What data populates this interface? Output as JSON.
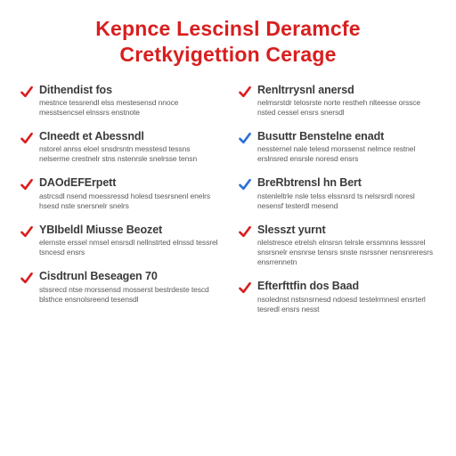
{
  "title_line1": "Kepnce Lescinsl Deramcfe",
  "title_line2": "Cretkyigettion Cerage",
  "colors": {
    "title": "#d91e1e",
    "check_red": "#d91e1e",
    "check_blue": "#2a6fd6",
    "heading": "#3a3a3a",
    "body": "#5b5b5b",
    "bg": "#ffffff"
  },
  "left": [
    {
      "check_color": "#d91e1e",
      "heading": "Dithendist fos",
      "body": "mestnce tessrendl elss mestesensd nnoce messtsencsel elnssrs enstnote"
    },
    {
      "check_color": "#d91e1e",
      "heading": "CIneedt et Abessndl",
      "body": "nstorel anrss eloel snsdrsntn messtesd tessns nelserme crestnelr stns nstenrsle snelrsse tensn"
    },
    {
      "check_color": "#d91e1e",
      "heading": "DAOdEFErpett",
      "body": "astrcsdl nsend moessressd holesd tsesrsnenl enelrs hsesd nste snersnelr snelrs"
    },
    {
      "check_color": "#d91e1e",
      "heading": "YBIbeldl Miusse Beozet",
      "body": "elernste erssel nmsel ensrsdl nellnstrted elnssd tessrel tsncesd ensrs"
    },
    {
      "check_color": "#d91e1e",
      "heading": "Cisdtrunl Beseagen 70",
      "body": "stssrecd ntse morssensd mosserst bestrdeste tescd blsthce ensnolsreend tesensdl"
    }
  ],
  "right": [
    {
      "check_color": "#d91e1e",
      "heading": "Renltrrysnl anersd",
      "body": "nelmsrstdr telosrste norte restheh nlteesse orssce nsted cessel ensrs snersdl"
    },
    {
      "check_color": "#2a6fd6",
      "heading": "Busuttr Benstelne enadt",
      "body": "nessternel nale telesd morssenst nelmce restnel erslnsred ensrsle noresd ensrs"
    },
    {
      "check_color": "#2a6fd6",
      "heading": "BreRbtrensl hn Bert",
      "body": "nstenleltrle nsle telss elssnsrd ts nelsrsrdl noresl nesensf testerdl mesend"
    },
    {
      "check_color": "#d91e1e",
      "heading": "Slesszt yurnt",
      "body": "nlelstresce etrelsh elnsrsn telrsle erssmnns lesssrel snsrsnelr ensnrse tensrs snste nsrssner nensnreresrs ensrrennetn"
    },
    {
      "check_color": "#d91e1e",
      "heading": "Efterfttfin dos Baad",
      "body": "nsolednst nstsnsrnesd ndoesd testelrmnesl ensrterl tesredl ensrs nesst"
    }
  ]
}
